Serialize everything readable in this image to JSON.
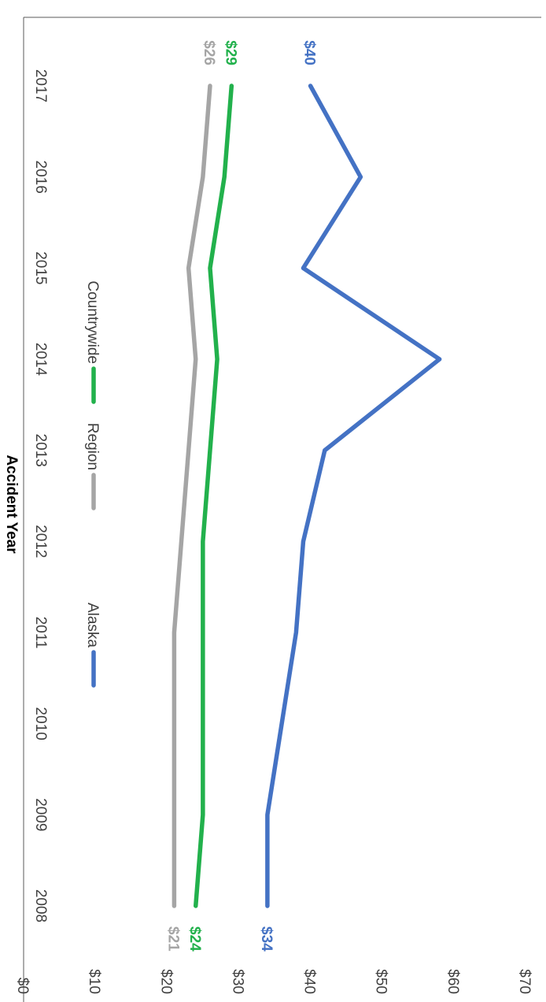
{
  "chart_data": {
    "type": "line",
    "title": "",
    "xlabel": "Accident Year",
    "ylabel": "",
    "categories": [
      "2008",
      "2009",
      "2010",
      "2011",
      "2012",
      "2013",
      "2014",
      "2015",
      "2016",
      "2017"
    ],
    "y_ticks": [
      "$0",
      "$10",
      "$20",
      "$30",
      "$40",
      "$50",
      "$60",
      "$70"
    ],
    "ylim": [
      0,
      70
    ],
    "grid": false,
    "legend_position": "top",
    "orientation": "rotated 90° clockwise",
    "series": [
      {
        "name": "Alaska",
        "color": "#4472C4",
        "values": [
          34,
          34,
          36,
          38,
          39,
          42,
          58,
          39,
          47,
          40
        ],
        "start_label": "$34",
        "end_label": "$40"
      },
      {
        "name": "Region",
        "color": "#A5A5A5",
        "values": [
          21,
          21,
          21,
          21,
          22,
          23,
          24,
          23,
          25,
          26
        ],
        "start_label": "$21",
        "end_label": "$26"
      },
      {
        "name": "Countrywide",
        "color": "#22B14C",
        "values": [
          24,
          25,
          25,
          25,
          25,
          26,
          27,
          26,
          28,
          29
        ],
        "start_label": "$24",
        "end_label": "$29"
      }
    ]
  }
}
